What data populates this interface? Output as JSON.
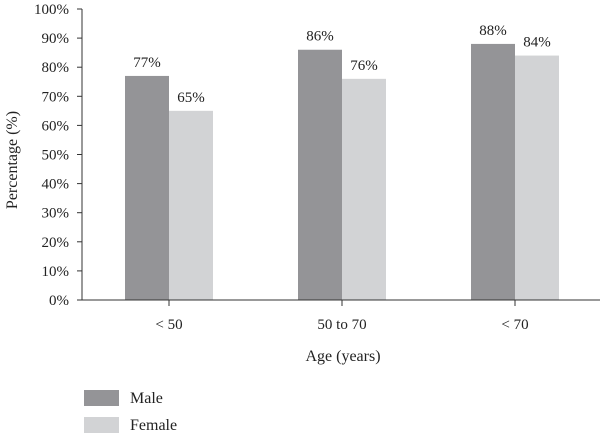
{
  "chart_data": {
    "type": "bar",
    "title": "",
    "xlabel": "Age (years)",
    "ylabel": "Percentage (%)",
    "categories": [
      "< 50",
      "50 to 70",
      "< 70"
    ],
    "series": [
      {
        "name": "Male",
        "values": [
          77,
          86,
          88
        ],
        "labels": [
          "77%",
          "86%",
          "88%"
        ],
        "color": "#949497"
      },
      {
        "name": "Female",
        "values": [
          65,
          76,
          84
        ],
        "labels": [
          "65%",
          "76%",
          "84%"
        ],
        "color": "#d2d3d5"
      }
    ],
    "ylim": [
      0,
      100
    ],
    "yticks": [
      0,
      10,
      20,
      30,
      40,
      50,
      60,
      70,
      80,
      90,
      100
    ],
    "ytick_labels": [
      "0%",
      "10%",
      "20%",
      "30%",
      "40%",
      "50%",
      "60%",
      "70%",
      "80%",
      "90%",
      "100%"
    ],
    "grid": false,
    "legend_position": "bottom-left"
  }
}
